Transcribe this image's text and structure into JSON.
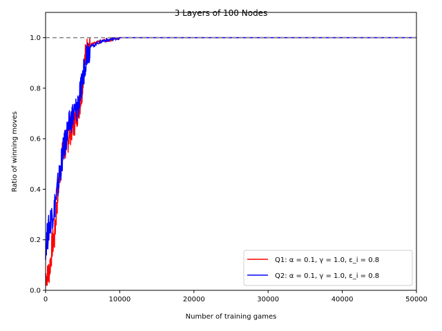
{
  "chart_data": {
    "type": "line",
    "title": "3 Layers of 100 Nodes",
    "xlabel": "Number of training games",
    "ylabel": "Ratio of winning moves",
    "xlim": [
      0,
      50000
    ],
    "ylim": [
      0,
      1.1
    ],
    "xticks": [
      0,
      10000,
      20000,
      30000,
      40000,
      50000
    ],
    "xtick_labels": [
      "0",
      "10000",
      "20000",
      "30000",
      "40000",
      "50000"
    ],
    "yticks": [
      0.0,
      0.2,
      0.4,
      0.6,
      0.8,
      1.0
    ],
    "ytick_labels": [
      "0.0",
      "0.2",
      "0.4",
      "0.6",
      "0.8",
      "1.0"
    ],
    "grid": false,
    "legend_position": "bottom-right",
    "reference_line": {
      "y": 1.0,
      "style": "dashed",
      "color": "#808080"
    },
    "series": [
      {
        "name": "Q1: α = 0.1, γ = 1.0, ε_i = 0.8",
        "color": "#ff0000",
        "x": [
          0,
          300,
          600,
          900,
          1200,
          1500,
          1800,
          2100,
          2400,
          2700,
          3000,
          3300,
          3600,
          3900,
          4200,
          4500,
          4800,
          5100,
          5400,
          5700,
          6000,
          6500,
          7000,
          7500,
          8000,
          8500,
          9000,
          9500,
          10000,
          10500,
          12000,
          15000,
          20000,
          30000,
          40000,
          50000
        ],
        "y": [
          0.06,
          0.05,
          0.1,
          0.18,
          0.21,
          0.33,
          0.43,
          0.51,
          0.55,
          0.57,
          0.6,
          0.63,
          0.65,
          0.67,
          0.7,
          0.73,
          0.77,
          0.86,
          0.93,
          0.96,
          0.97,
          0.975,
          0.98,
          0.985,
          0.99,
          0.99,
          0.995,
          0.998,
          1.0,
          1.0,
          1.0,
          1.0,
          1.0,
          1.0,
          1.0,
          1.0
        ]
      },
      {
        "name": "Q2: α = 0.1, γ = 1.0, ε_i = 0.8",
        "color": "#0000ff",
        "x": [
          0,
          300,
          600,
          900,
          1200,
          1500,
          1800,
          2100,
          2400,
          2700,
          3000,
          3300,
          3600,
          3900,
          4200,
          4500,
          4800,
          5100,
          5400,
          5700,
          6000,
          6500,
          7000,
          7500,
          8000,
          8500,
          9000,
          9500,
          10000,
          10500,
          12000,
          15000,
          20000,
          30000,
          40000,
          50000
        ],
        "y": [
          0.18,
          0.22,
          0.27,
          0.3,
          0.33,
          0.38,
          0.44,
          0.5,
          0.55,
          0.6,
          0.63,
          0.66,
          0.69,
          0.7,
          0.72,
          0.75,
          0.79,
          0.86,
          0.92,
          0.955,
          0.965,
          0.97,
          0.98,
          0.985,
          0.99,
          0.99,
          0.995,
          0.998,
          1.0,
          1.0,
          1.0,
          1.0,
          1.0,
          1.0,
          1.0,
          1.0
        ]
      }
    ]
  }
}
